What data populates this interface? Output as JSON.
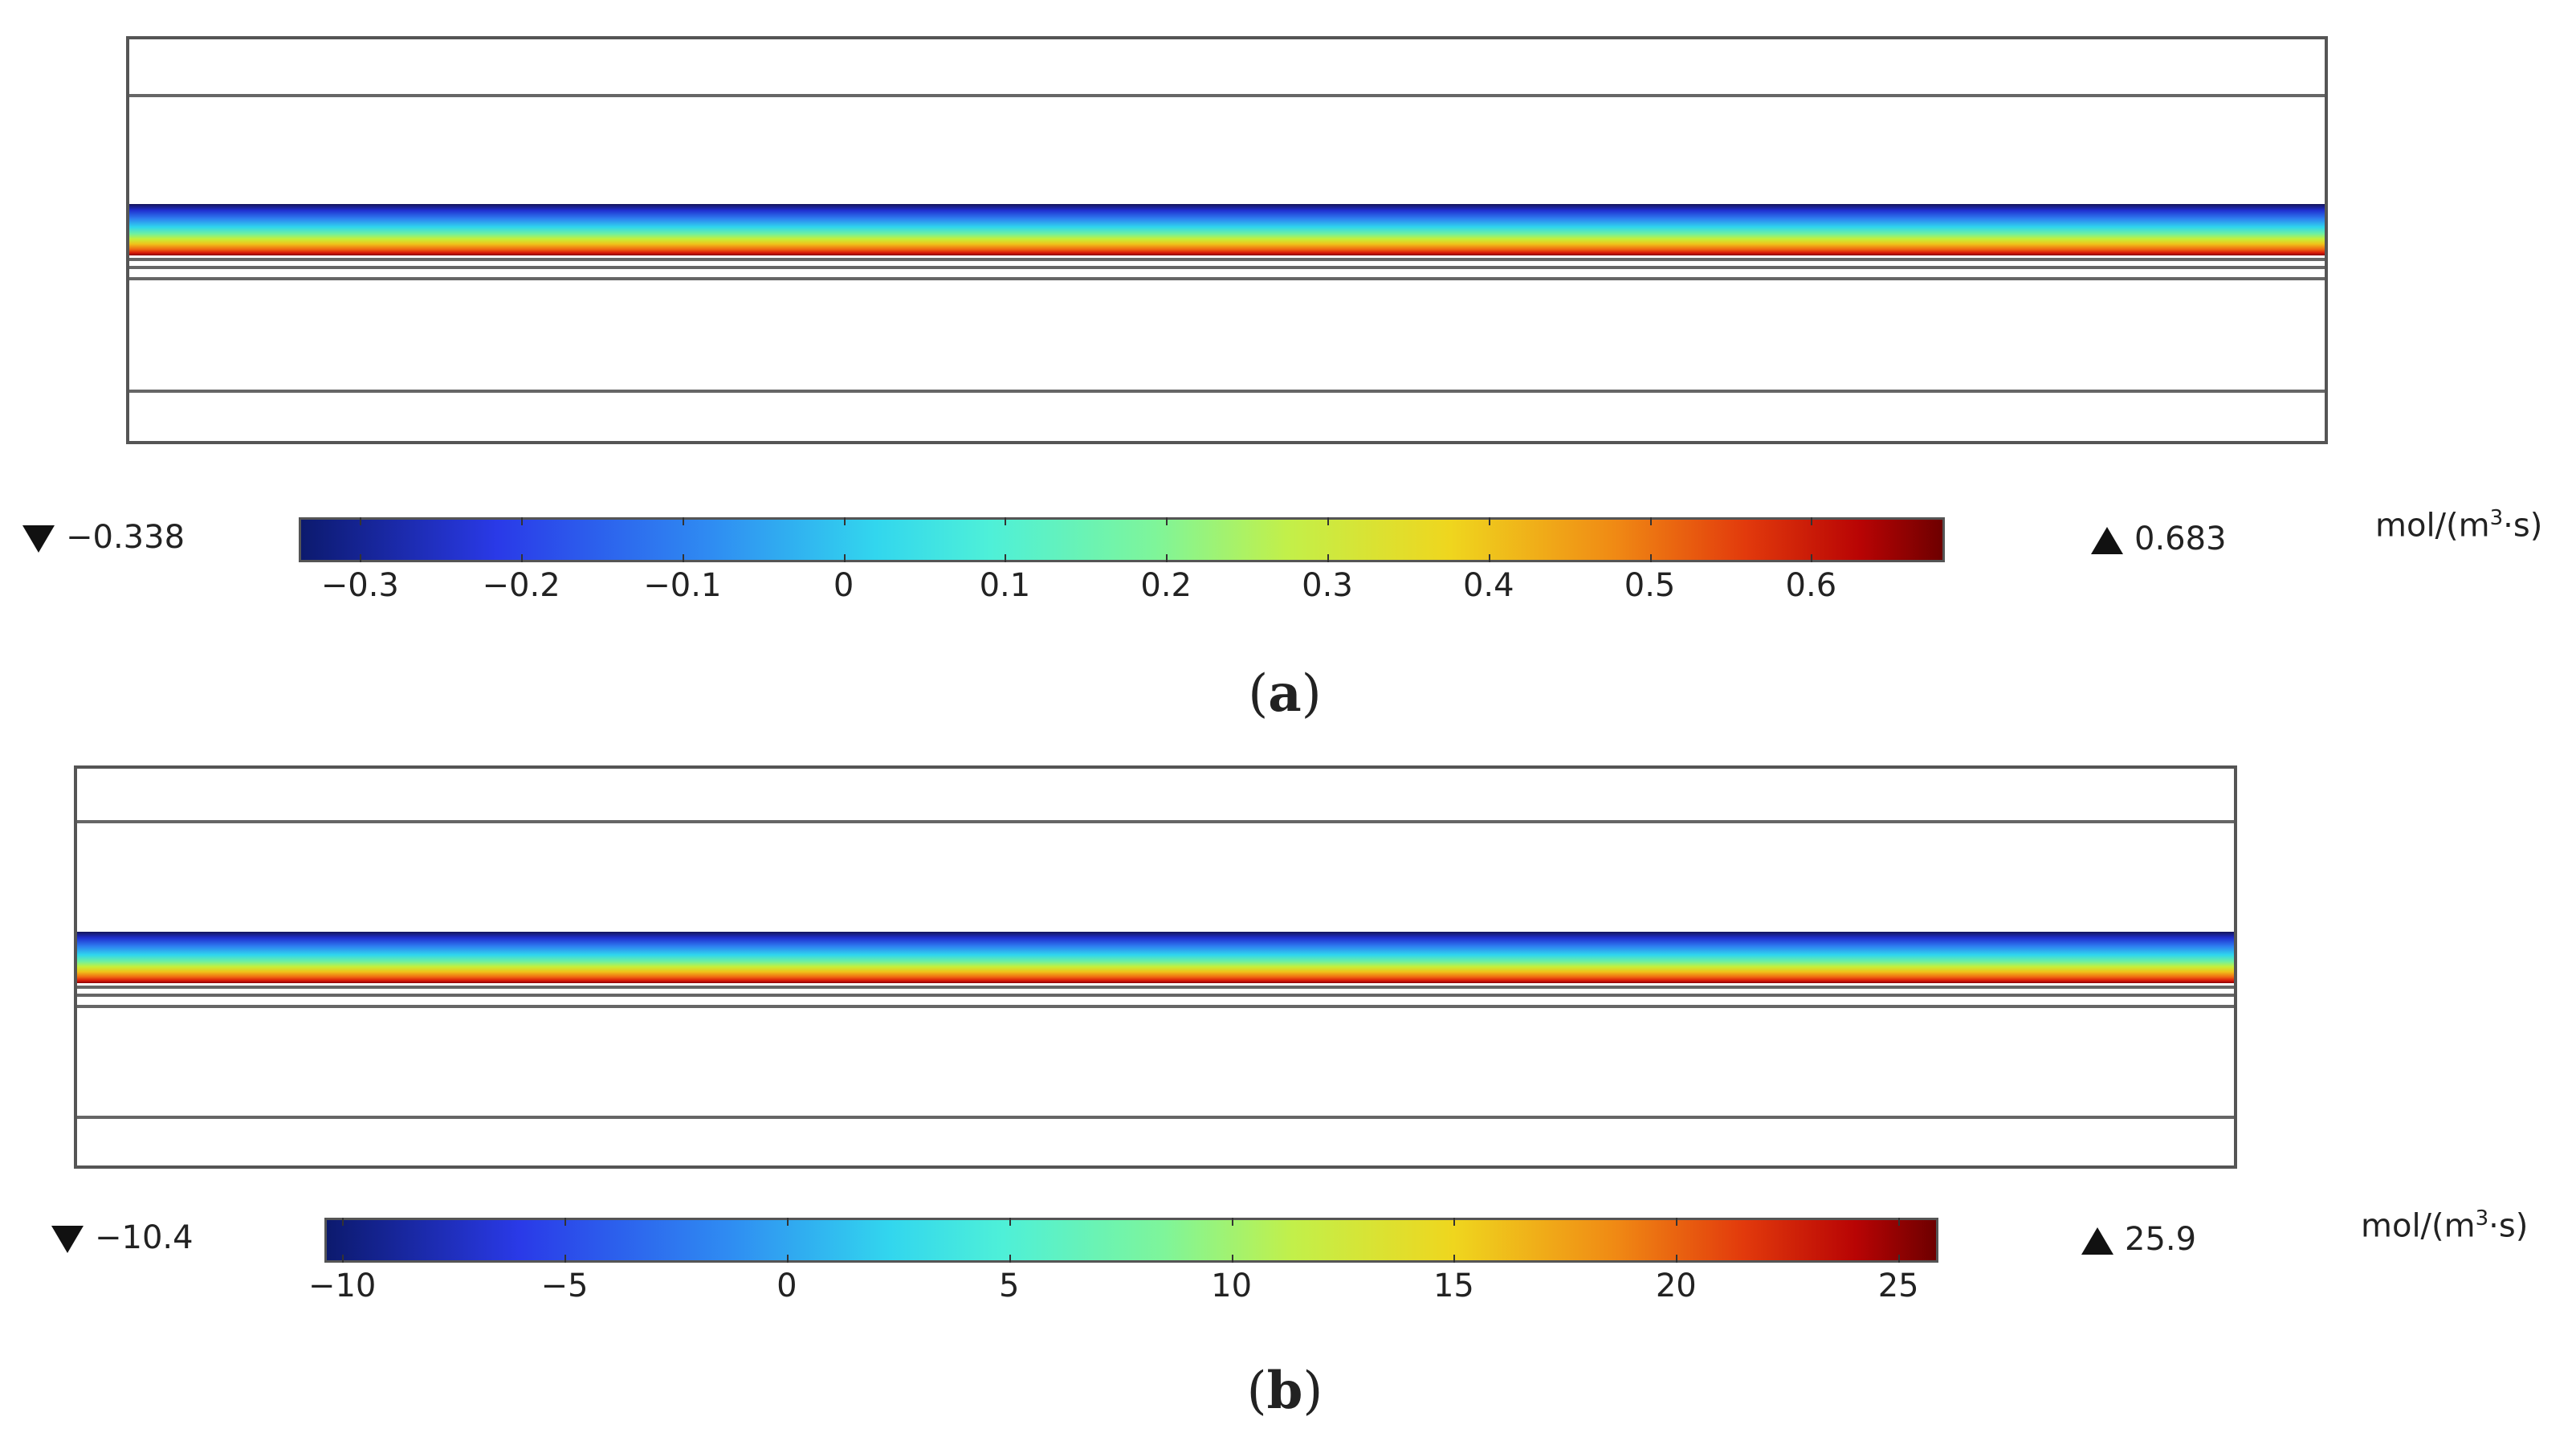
{
  "panels": [
    {
      "id": "a",
      "caption_open": "(",
      "caption_letter": "a",
      "caption_close": ")",
      "min_label": "−0.338",
      "max_label": "0.683",
      "unit_main": "mol/(m",
      "unit_sup": "3",
      "unit_tail": "·s)",
      "colorbar": {
        "range": [
          -0.338,
          0.683
        ],
        "ticks": [
          {
            "value": -0.3,
            "label": "−0.3"
          },
          {
            "value": -0.2,
            "label": "−0.2"
          },
          {
            "value": -0.1,
            "label": "−0.1"
          },
          {
            "value": 0,
            "label": "0"
          },
          {
            "value": 0.1,
            "label": "0.1"
          },
          {
            "value": 0.2,
            "label": "0.2"
          },
          {
            "value": 0.3,
            "label": "0.3"
          },
          {
            "value": 0.4,
            "label": "0.4"
          },
          {
            "value": 0.5,
            "label": "0.5"
          },
          {
            "value": 0.6,
            "label": "0.6"
          }
        ],
        "colormap": "jet"
      }
    },
    {
      "id": "b",
      "caption_open": "(",
      "caption_letter": "b",
      "caption_close": ")",
      "min_label": "−10.4",
      "max_label": "25.9",
      "unit_main": "mol/(m",
      "unit_sup": "3",
      "unit_tail": "·s)",
      "colorbar": {
        "range": [
          -10.4,
          25.9
        ],
        "ticks": [
          {
            "value": -10,
            "label": "−10"
          },
          {
            "value": -5,
            "label": "−5"
          },
          {
            "value": 0,
            "label": "0"
          },
          {
            "value": 5,
            "label": "5"
          },
          {
            "value": 10,
            "label": "10"
          },
          {
            "value": 15,
            "label": "15"
          },
          {
            "value": 20,
            "label": "20"
          },
          {
            "value": 25,
            "label": "25"
          }
        ],
        "colormap": "jet"
      }
    }
  ]
}
